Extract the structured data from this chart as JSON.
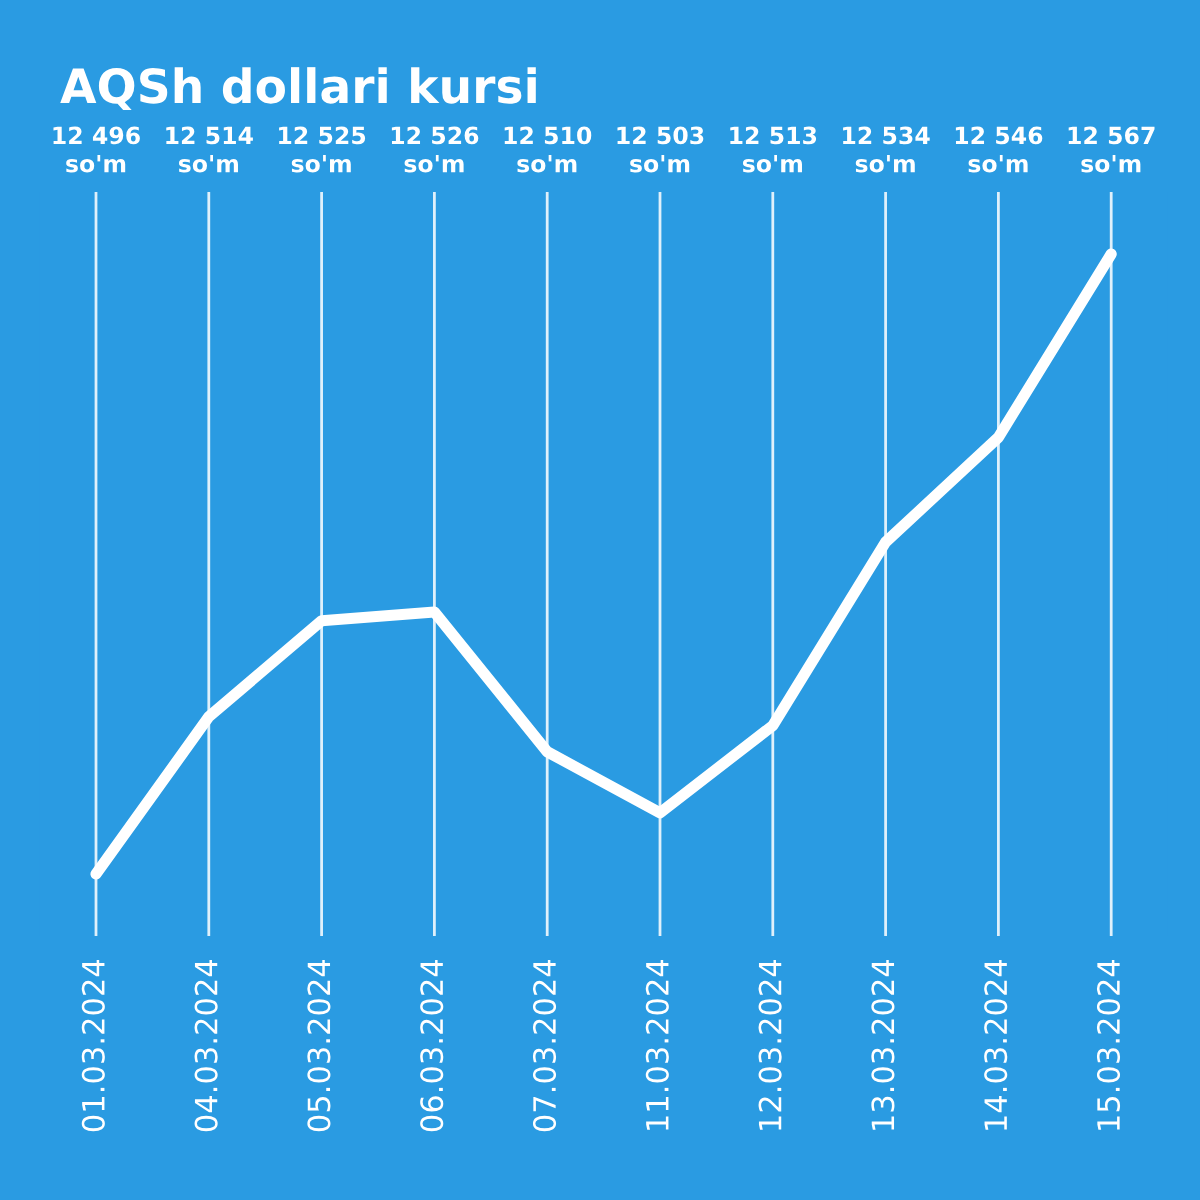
{
  "chart_data": {
    "type": "line",
    "title": "AQSh dollari kursi",
    "categories": [
      "01.03.2024",
      "04.03.2024",
      "05.03.2024",
      "06.03.2024",
      "07.03.2024",
      "11.03.2024",
      "12.03.2024",
      "13.03.2024",
      "14.03.2024",
      "15.03.2024"
    ],
    "series": [
      {
        "color": "#ffffff",
        "values": [
          12496,
          12514,
          12525,
          12526,
          12510,
          12503,
          12513,
          12534,
          12546,
          12567
        ],
        "value_labels": [
          "12 496\nso'm",
          "12 514\nso'm",
          "12 525\nso'm",
          "12 526\nso'm",
          "12 510\nso'm",
          "12 503\nso'm",
          "12 513\nso'm",
          "12 534\nso'm",
          "12 546\nso'm",
          "12 567\nso'm"
        ]
      }
    ],
    "grid": "x",
    "marker": "none",
    "line_style": "solid",
    "legend": false
  }
}
